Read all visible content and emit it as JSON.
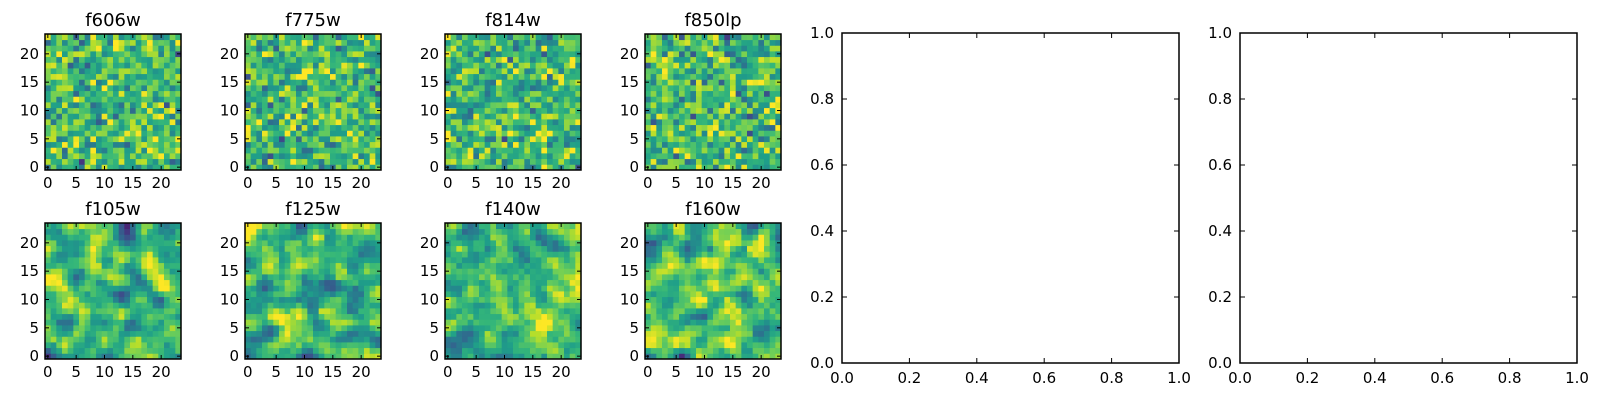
{
  "chart_data": [
    {
      "type": "heatmap",
      "title": "f606w",
      "xticks": [
        "0",
        "5",
        "10",
        "15",
        "20"
      ],
      "yticks": [
        "0",
        "5",
        "10",
        "15",
        "20"
      ],
      "grid": [
        24,
        24
      ],
      "extent": [
        -0.5,
        23.5
      ],
      "value_range": [
        0,
        1
      ],
      "colormap": "viridis",
      "seed": 11
    },
    {
      "type": "heatmap",
      "title": "f775w",
      "xticks": [
        "0",
        "5",
        "10",
        "15",
        "20"
      ],
      "yticks": [
        "0",
        "5",
        "10",
        "15",
        "20"
      ],
      "grid": [
        24,
        24
      ],
      "extent": [
        -0.5,
        23.5
      ],
      "value_range": [
        0,
        1
      ],
      "colormap": "viridis",
      "seed": 23
    },
    {
      "type": "heatmap",
      "title": "f814w",
      "xticks": [
        "0",
        "5",
        "10",
        "15",
        "20"
      ],
      "yticks": [
        "0",
        "5",
        "10",
        "15",
        "20"
      ],
      "grid": [
        24,
        24
      ],
      "extent": [
        -0.5,
        23.5
      ],
      "value_range": [
        0,
        1
      ],
      "colormap": "viridis",
      "seed": 37
    },
    {
      "type": "heatmap",
      "title": "f850lp",
      "xticks": [
        "0",
        "5",
        "10",
        "15",
        "20"
      ],
      "yticks": [
        "0",
        "5",
        "10",
        "15",
        "20"
      ],
      "grid": [
        24,
        24
      ],
      "extent": [
        -0.5,
        23.5
      ],
      "value_range": [
        0,
        1
      ],
      "colormap": "viridis",
      "seed": 41
    },
    {
      "type": "heatmap",
      "title": "f105w",
      "xticks": [
        "0",
        "5",
        "10",
        "15",
        "20"
      ],
      "yticks": [
        "0",
        "5",
        "10",
        "15",
        "20"
      ],
      "grid": [
        24,
        24
      ],
      "extent": [
        -0.5,
        23.5
      ],
      "value_range": [
        0,
        1
      ],
      "colormap": "viridis",
      "seed": 53
    },
    {
      "type": "heatmap",
      "title": "f125w",
      "xticks": [
        "0",
        "5",
        "10",
        "15",
        "20"
      ],
      "yticks": [
        "0",
        "5",
        "10",
        "15",
        "20"
      ],
      "grid": [
        24,
        24
      ],
      "extent": [
        -0.5,
        23.5
      ],
      "value_range": [
        0,
        1
      ],
      "colormap": "viridis",
      "seed": 67
    },
    {
      "type": "heatmap",
      "title": "f140w",
      "xticks": [
        "0",
        "5",
        "10",
        "15",
        "20"
      ],
      "yticks": [
        "0",
        "5",
        "10",
        "15",
        "20"
      ],
      "grid": [
        24,
        24
      ],
      "extent": [
        -0.5,
        23.5
      ],
      "value_range": [
        0,
        1
      ],
      "colormap": "viridis",
      "seed": 79
    },
    {
      "type": "heatmap",
      "title": "f160w",
      "xticks": [
        "0",
        "5",
        "10",
        "15",
        "20"
      ],
      "yticks": [
        "0",
        "5",
        "10",
        "15",
        "20"
      ],
      "grid": [
        24,
        24
      ],
      "extent": [
        -0.5,
        23.5
      ],
      "value_range": [
        0,
        1
      ],
      "colormap": "viridis",
      "seed": 97
    },
    {
      "type": "scatter",
      "title": "",
      "series": [],
      "xlim": [
        0,
        1
      ],
      "ylim": [
        0,
        1
      ],
      "xticks": [
        "0.0",
        "0.2",
        "0.4",
        "0.6",
        "0.8",
        "1.0"
      ],
      "yticks": [
        "0.0",
        "0.2",
        "0.4",
        "0.6",
        "0.8",
        "1.0"
      ]
    },
    {
      "type": "scatter",
      "title": "",
      "series": [],
      "xlim": [
        0,
        1
      ],
      "ylim": [
        0,
        1
      ],
      "xticks": [
        "0.0",
        "0.2",
        "0.4",
        "0.6",
        "0.8",
        "1.0"
      ],
      "yticks": [
        "0.0",
        "0.2",
        "0.4",
        "0.6",
        "0.8",
        "1.0"
      ]
    }
  ],
  "colors": {
    "frame": "#000000",
    "viridis": [
      "#440154",
      "#482878",
      "#3e4989",
      "#31688e",
      "#26828e",
      "#1f9e89",
      "#35b779",
      "#6ece58",
      "#b5de2b",
      "#fde725"
    ]
  }
}
